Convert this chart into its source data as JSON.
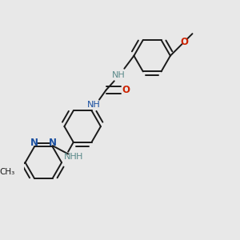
{
  "background_color": "#e8e8e8",
  "bond_color": "#1a1a1a",
  "n_color": "#1a4fa0",
  "nh_color": "#5b8a8a",
  "o_color": "#cc2200",
  "lw": 1.4,
  "dbo": 0.018,
  "r": 0.085,
  "xlim": [
    0.0,
    1.0
  ],
  "ylim": [
    0.0,
    1.0
  ]
}
